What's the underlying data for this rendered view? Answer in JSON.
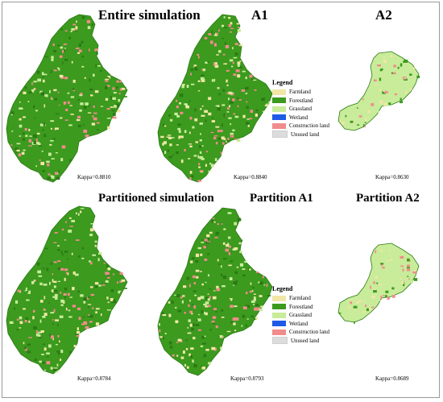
{
  "panels": [
    {
      "id": "entire",
      "title": "Entire simulation",
      "kappa": "Kappa=0.8810"
    },
    {
      "id": "a1",
      "title": "A1",
      "kappa": "Kappa=0.8840"
    },
    {
      "id": "a2",
      "title": "A2",
      "kappa": "Kappa=0.8630"
    },
    {
      "id": "partitioned",
      "title": "Partitioned simulation",
      "kappa": "Kappa=0.8784"
    },
    {
      "id": "pa1",
      "title": "Partition A1",
      "kappa": "Kappa=0.8793"
    },
    {
      "id": "pa2",
      "title": "Partition A2",
      "kappa": "Kappa=0.8689"
    }
  ],
  "legend": {
    "title": "Legend",
    "items": [
      {
        "label": "Farmland",
        "color": "#f2e6a6"
      },
      {
        "label": "Forestland",
        "color": "#3c9a1e"
      },
      {
        "label": "Grassland",
        "color": "#c8ec9a"
      },
      {
        "label": "Wetland",
        "color": "#1e5ae6"
      },
      {
        "label": "Construction land",
        "color": "#f08c8c"
      },
      {
        "label": "Unused land",
        "color": "#dcdcdc"
      }
    ]
  },
  "map_colors": {
    "forest": "#3c9a1e",
    "forest_dark": "#2a7a14",
    "farmland": "#f2e6a6",
    "grassland": "#c8ec9a",
    "construction": "#f08c8c"
  }
}
